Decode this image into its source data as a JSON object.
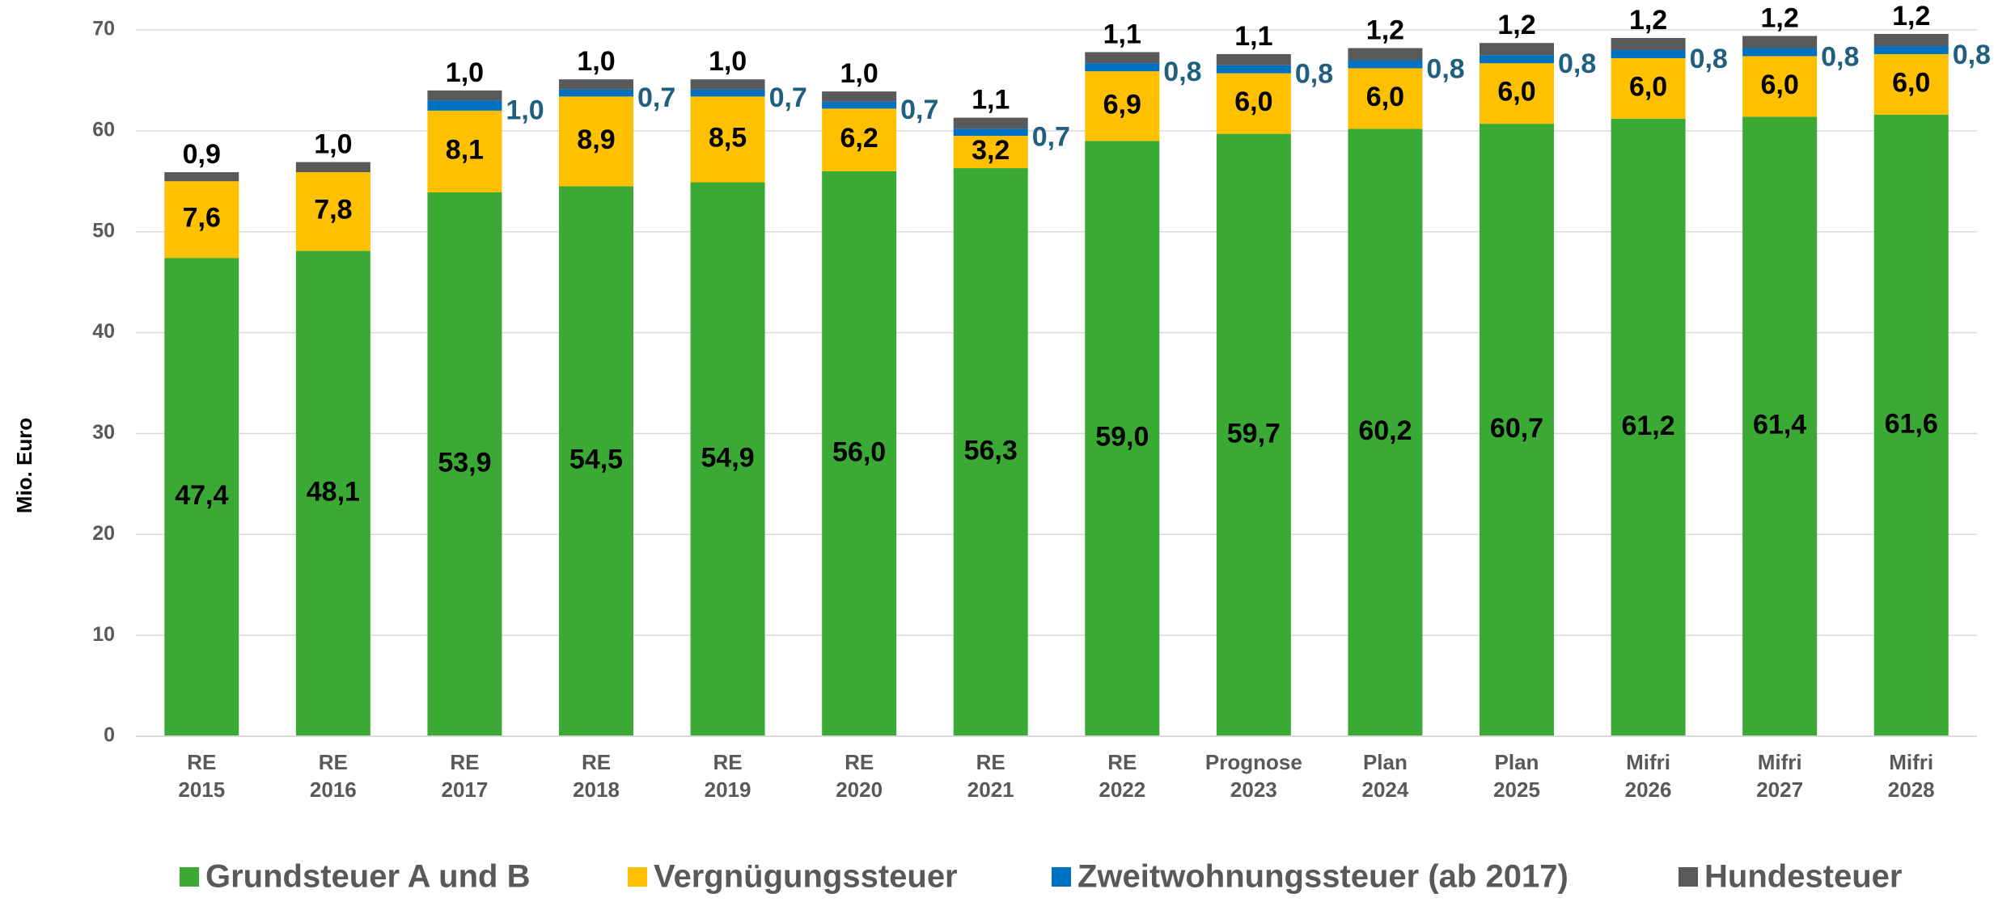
{
  "chart_data": {
    "type": "stacked_bar",
    "y_label": "Mio. Euro",
    "categories": [
      [
        "RE",
        "2015"
      ],
      [
        "RE",
        "2016"
      ],
      [
        "RE",
        "2017"
      ],
      [
        "RE",
        "2018"
      ],
      [
        "RE",
        "2019"
      ],
      [
        "RE",
        "2020"
      ],
      [
        "RE",
        "2021"
      ],
      [
        "RE",
        "2022"
      ],
      [
        "Prognose",
        "2023"
      ],
      [
        "Plan",
        "2024"
      ],
      [
        "Plan",
        "2025"
      ],
      [
        "Mifri",
        "2026"
      ],
      [
        "Mifri",
        "2027"
      ],
      [
        "Mifri",
        "2028"
      ]
    ],
    "series": [
      {
        "name": "Grundsteuer A und B",
        "color": "#3aaa35",
        "values": [
          47.4,
          48.1,
          53.9,
          54.5,
          54.9,
          56.0,
          56.3,
          59.0,
          59.7,
          60.2,
          60.7,
          61.2,
          61.4,
          61.6
        ],
        "value_labels": [
          "47,4",
          "48,1",
          "53,9",
          "54,5",
          "54,9",
          "56,0",
          "56,3",
          "59,0",
          "59,7",
          "60,2",
          "60,7",
          "61,2",
          "61,4",
          "61,6"
        ]
      },
      {
        "name": "Vergnügungssteuer",
        "color": "#ffc000",
        "values": [
          7.6,
          7.8,
          8.1,
          8.9,
          8.5,
          6.2,
          3.2,
          6.9,
          6.0,
          6.0,
          6.0,
          6.0,
          6.0,
          6.0
        ],
        "value_labels": [
          "7,6",
          "7,8",
          "8,1",
          "8,9",
          "8,5",
          "6,2",
          "3,2",
          "6,9",
          "6,0",
          "6,0",
          "6,0",
          "6,0",
          "6,0",
          "6,0"
        ]
      },
      {
        "name": "Zweitwohnungssteuer (ab 2017)",
        "color": "#0070c0",
        "label_color": "#1f5f7f",
        "values": [
          null,
          null,
          1.0,
          0.7,
          0.7,
          0.7,
          0.7,
          0.8,
          0.8,
          0.8,
          0.8,
          0.8,
          0.8,
          0.8
        ],
        "value_labels": [
          null,
          null,
          "1,0",
          "0,7",
          "0,7",
          "0,7",
          "0,7",
          "0,8",
          "0,8",
          "0,8",
          "0,8",
          "0,8",
          "0,8",
          "0,8"
        ]
      },
      {
        "name": "Hundesteuer",
        "color": "#595959",
        "values": [
          0.9,
          1.0,
          1.0,
          1.0,
          1.0,
          1.0,
          1.1,
          1.1,
          1.1,
          1.2,
          1.2,
          1.2,
          1.2,
          1.2
        ],
        "value_labels": [
          "0,9",
          "1,0",
          "1,0",
          "1,0",
          "1,0",
          "1,0",
          "1,1",
          "1,1",
          "1,1",
          "1,2",
          "1,2",
          "1,2",
          "1,2",
          "1,2"
        ]
      }
    ],
    "ylim": [
      0,
      70
    ],
    "yticks": [
      0,
      10,
      20,
      30,
      40,
      50,
      60,
      70
    ],
    "grid": true
  }
}
